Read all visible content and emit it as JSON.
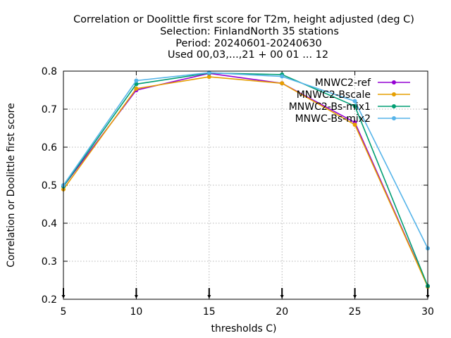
{
  "chart_data": {
    "type": "line",
    "title_lines": [
      "Correlation or Doolittle first score  for T2m, height adjusted (deg C)",
      "Selection: FinlandNorth     35 stations",
      "Period: 20240601-20240630",
      "Used 00,03,...,21 + 00 01 ... 12"
    ],
    "xlabel": "thresholds C)",
    "ylabel": "Correlation or Doolittle first score",
    "x": [
      5,
      10,
      15,
      20,
      25,
      30
    ],
    "xlim": [
      5,
      30
    ],
    "ylim": [
      0.2,
      0.8
    ],
    "xticks": [
      5,
      10,
      15,
      20,
      25,
      30
    ],
    "yticks": [
      0.2,
      0.3,
      0.4,
      0.5,
      0.6,
      0.7,
      0.8
    ],
    "grid": true,
    "legend_position": "top-right",
    "series": [
      {
        "name": "MNWC2-ref",
        "color": "#9400d3",
        "values": [
          0.497,
          0.75,
          0.794,
          0.768,
          0.665,
          0.234
        ]
      },
      {
        "name": "MNWC2-Bscale",
        "color": "#e69f00",
        "values": [
          0.489,
          0.754,
          0.785,
          0.768,
          0.659,
          0.233
        ]
      },
      {
        "name": "MNWC2-Bs-mix1",
        "color": "#009e73",
        "values": [
          0.497,
          0.766,
          0.795,
          0.791,
          0.708,
          0.235
        ]
      },
      {
        "name": "MNWC-Bs-mix2",
        "color": "#56b4e9",
        "values": [
          0.5,
          0.775,
          0.796,
          0.786,
          0.721,
          0.334
        ]
      }
    ]
  }
}
